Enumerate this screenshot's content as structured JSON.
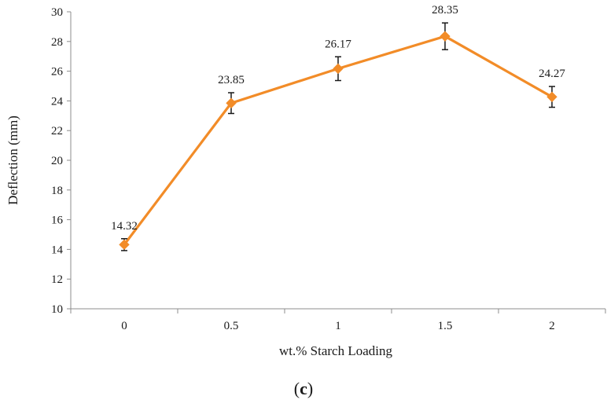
{
  "chart_data": {
    "type": "line",
    "title": "",
    "xlabel": "wt.% Starch Loading",
    "ylabel": "Deflection (mm)",
    "categories": [
      "0",
      "0.5",
      "1",
      "1.5",
      "2"
    ],
    "series": [
      {
        "values": [
          14.32,
          23.85,
          26.17,
          28.35,
          24.27
        ],
        "errors": [
          0.4,
          0.7,
          0.8,
          0.9,
          0.7
        ],
        "color": "#f28c28"
      }
    ],
    "data_labels": [
      "14.32",
      "23.85",
      "26.17",
      "28.35",
      "24.27"
    ],
    "ylim": [
      10,
      30
    ],
    "yticks": [
      10,
      12,
      14,
      16,
      18,
      20,
      22,
      24,
      26,
      28,
      30
    ],
    "grid": false,
    "legend": "none",
    "marker": "diamond"
  },
  "caption": {
    "open": "(",
    "letter": "c",
    "close": ")"
  }
}
